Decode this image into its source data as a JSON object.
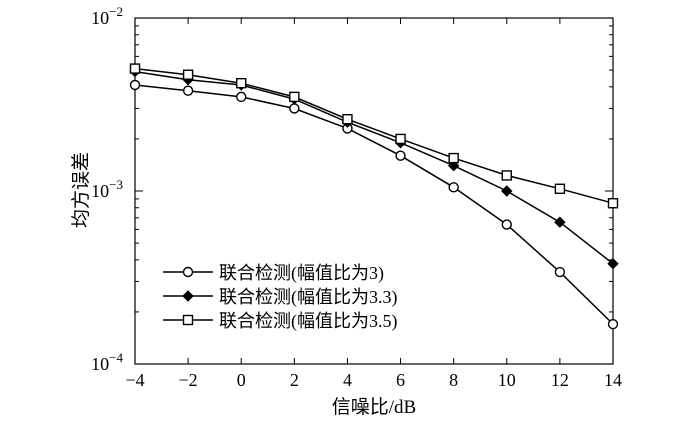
{
  "chart_data": {
    "type": "line",
    "xlabel": "信噪比/dB",
    "ylabel": "均方误差",
    "yscale": "log",
    "xlim": [
      -4,
      14
    ],
    "ylim": [
      0.0001,
      0.01
    ],
    "x_ticks": [
      -4,
      -2,
      0,
      2,
      4,
      6,
      8,
      10,
      12,
      14
    ],
    "x_tick_labels": [
      "−4",
      "−2",
      "0",
      "2",
      "4",
      "6",
      "8",
      "10",
      "12",
      "14"
    ],
    "y_ticks": [
      {
        "value": 0.01,
        "base": "10",
        "exp": "−2"
      },
      {
        "value": 0.001,
        "base": "10",
        "exp": "−3"
      },
      {
        "value": 0.0001,
        "base": "10",
        "exp": "−4"
      }
    ],
    "grid": false,
    "legend_position": "bottom-left",
    "x": [
      -4,
      -2,
      0,
      2,
      4,
      6,
      8,
      10,
      12,
      14
    ],
    "series": [
      {
        "name": "联合检测(幅值比为3)",
        "marker": "circle",
        "values": [
          0.0041,
          0.0038,
          0.0035,
          0.003,
          0.0023,
          0.0016,
          0.00105,
          0.00064,
          0.00034,
          0.00017
        ]
      },
      {
        "name": "联合检测(幅值比为3.3)",
        "marker": "diamond",
        "values": [
          0.0049,
          0.0044,
          0.0041,
          0.0034,
          0.0025,
          0.0019,
          0.0014,
          0.001,
          0.00066,
          0.00038
        ]
      },
      {
        "name": "联合检测(幅值比为3.5)",
        "marker": "square",
        "values": [
          0.0051,
          0.0047,
          0.0042,
          0.0035,
          0.0026,
          0.002,
          0.00155,
          0.00123,
          0.00103,
          0.00085
        ]
      }
    ]
  }
}
